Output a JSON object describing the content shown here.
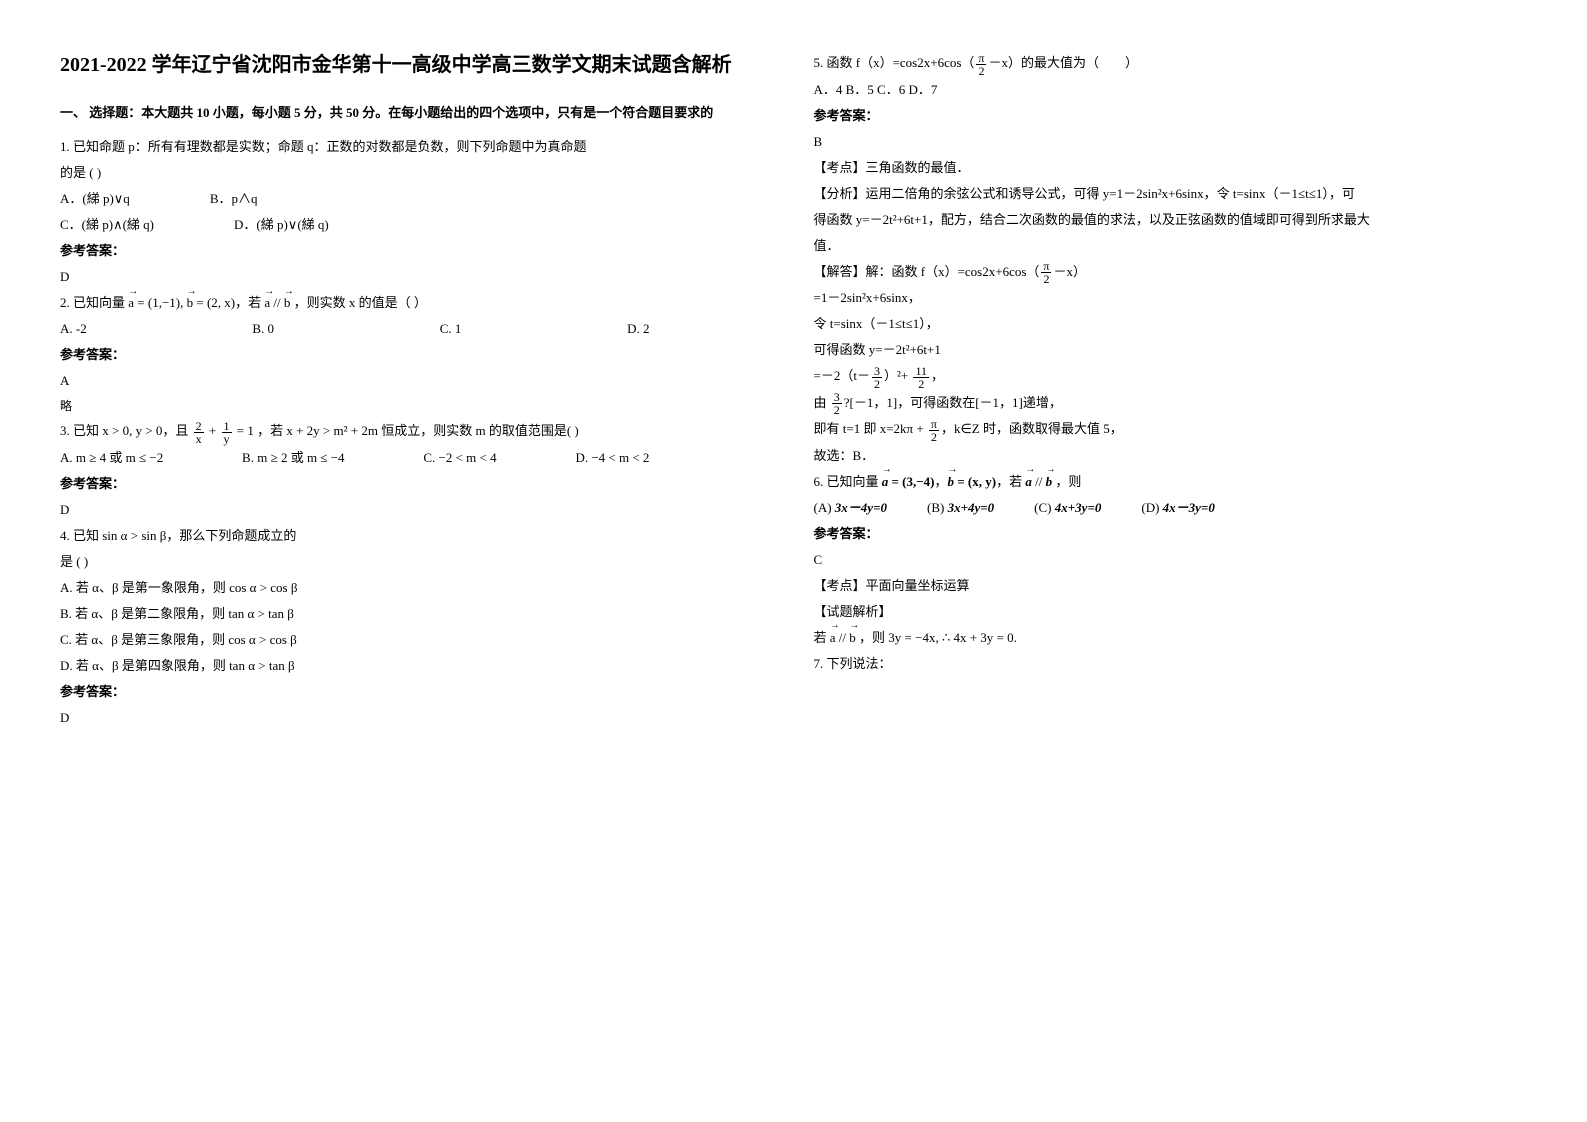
{
  "title": "2021-2022 学年辽宁省沈阳市金华第十一高级中学高三数学文期末试题含解析",
  "sectionHead": "一、 选择题：本大题共 10 小题，每小题 5 分，共 50 分。在每小题给出的四个选项中，只有是一个符合题目要求的",
  "q1": {
    "stem": "1. 已知命题 p：所有有理数都是实数；命题 q：正数的对数都是负数，则下列命题中为真命题",
    "stem2": "的是                                          (        )",
    "optA": "A．(綈 p)∨q",
    "optB": "B．p∧q",
    "optC": "C．(綈 p)∧(綈 q)",
    "optD": "D．(綈 p)∨(綈 q)",
    "ansLabel": "参考答案：",
    "ans": "D"
  },
  "q2": {
    "optA": "A. -2",
    "optB": "B. 0",
    "optC": "C. 1",
    "optD": "D. 2",
    "ansLabel": "参考答案：",
    "ans": "A",
    "note": "略"
  },
  "q3": {
    "ansLabel": "参考答案：",
    "ans": "D"
  },
  "q4": {
    "line2": "是                                                                                (                       )",
    "ansLabel": "参考答案：",
    "ans": "D"
  },
  "q5": {
    "optLine": "A．4    B．5    C．6    D．7",
    "ansLabel": "参考答案：",
    "ans": "B",
    "tag": "【考点】三角函数的最值．",
    "anaL1": "【分析】运用二倍角的余弦公式和诱导公式，可得 y=1－2sin²x+6sinx，令 t=sinx（－1≤t≤1），可",
    "anaL2": "得函数 y=－2t²+6t+1，配方，结合二次函数的最值的求法，以及正弦函数的值域即可得到所求最大",
    "anaL3": "值．",
    "solL2": "=1－2sin²x+6sinx，",
    "solL3": "令 t=sinx（－1≤t≤1），",
    "solL4": "可得函数 y=－2t²+6t+1",
    "solL7": "故选：B．"
  },
  "q6": {
    "optA": "3x－4y=0",
    "optB": "3x+4y=0",
    "optC": "4x+3y=0",
    "optD": "4x－3y=0",
    "ansLabel": "参考答案：",
    "ans": "C",
    "tag": "【考点】平面向量坐标运算",
    "ana": "【试题解析】"
  },
  "q7": {
    "stem": "7. 下列说法："
  }
}
